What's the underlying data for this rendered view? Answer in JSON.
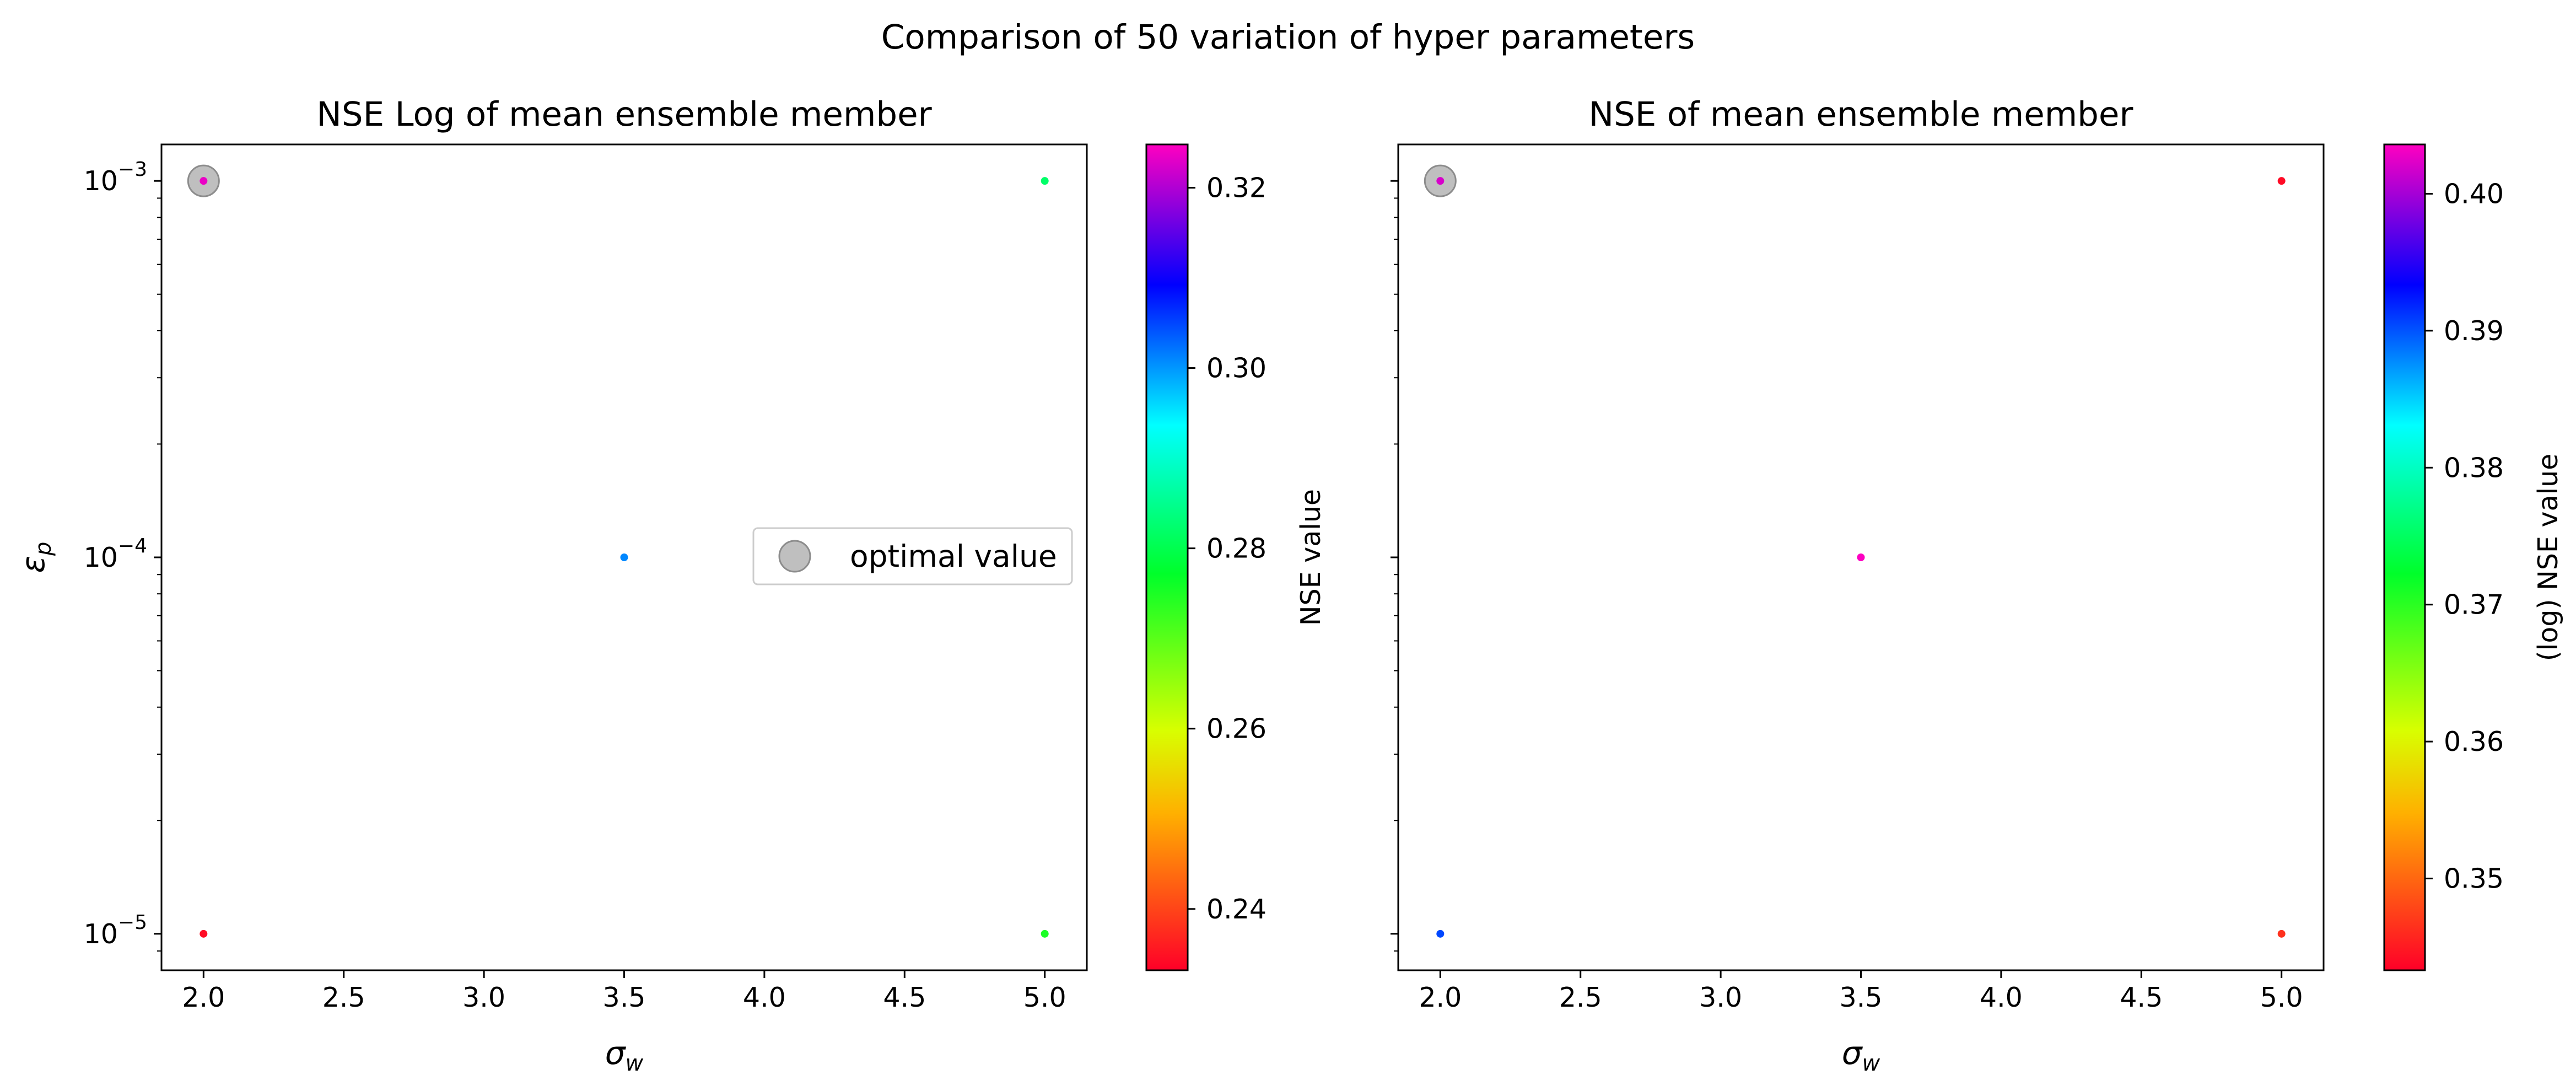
{
  "suptitle": "Comparison of 50 variation of hyper parameters",
  "chart_data": [
    {
      "type": "scatter",
      "title": "NSE Log of mean ensemble member",
      "xlabel": "σw",
      "ylabel": "εp",
      "yscale": "log",
      "xlim": [
        1.85,
        5.15
      ],
      "ylim": [
        8e-06,
        0.00125
      ],
      "xticks": [
        "2.0",
        "2.5",
        "3.0",
        "3.5",
        "4.0",
        "4.5",
        "5.0"
      ],
      "yticks": [
        {
          "base": "10",
          "exp": "−3"
        },
        {
          "base": "10",
          "exp": "−4"
        },
        {
          "base": "10",
          "exp": "−5"
        }
      ],
      "colorbar": {
        "label": "NSE value",
        "range": [
          0.2332,
          0.3248
        ],
        "ticks": [
          "0.24",
          "0.26",
          "0.28",
          "0.30",
          "0.32"
        ],
        "colormap": "gist_rainbow_r"
      },
      "points": [
        {
          "x": 2.0,
          "y": 0.001,
          "c": 0.3235
        },
        {
          "x": 2.0,
          "y": 1e-05,
          "c": 0.2345
        },
        {
          "x": 3.5,
          "y": 0.0001,
          "c": 0.301
        },
        {
          "x": 5.0,
          "y": 0.001,
          "c": 0.282
        },
        {
          "x": 5.0,
          "y": 1e-05,
          "c": 0.275
        }
      ],
      "optimal": {
        "x": 2.0,
        "y": 0.001
      },
      "legend": {
        "label": "optimal value",
        "location": "center-right"
      }
    },
    {
      "type": "scatter",
      "title": "NSE of mean ensemble member",
      "xlabel": "σw",
      "yscale": "log",
      "xlim": [
        1.85,
        5.15
      ],
      "ylim": [
        8e-06,
        0.00125
      ],
      "xticks": [
        "2.0",
        "2.5",
        "3.0",
        "3.5",
        "4.0",
        "4.5",
        "5.0"
      ],
      "colorbar": {
        "label": "(log) NSE value",
        "range": [
          0.3433,
          0.4036
        ],
        "ticks": [
          "0.35",
          "0.36",
          "0.37",
          "0.38",
          "0.39",
          "0.40"
        ],
        "colormap": "gist_rainbow_r"
      },
      "points": [
        {
          "x": 2.0,
          "y": 0.001,
          "c": 0.402
        },
        {
          "x": 2.0,
          "y": 1e-05,
          "c": 0.3905
        },
        {
          "x": 3.5,
          "y": 0.0001,
          "c": 0.4035
        },
        {
          "x": 5.0,
          "y": 0.001,
          "c": 0.344
        },
        {
          "x": 5.0,
          "y": 1e-05,
          "c": 0.3465
        }
      ],
      "optimal": {
        "x": 2.0,
        "y": 0.001
      }
    }
  ]
}
